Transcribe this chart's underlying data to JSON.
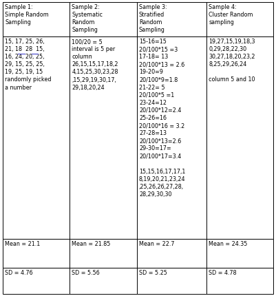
{
  "col_headers": [
    "Sample 1:\nSimple Random\nSampling",
    "Sample 2:\nSystematic\nRandom\nSampling",
    "Sample 3:\nStratified\nRandom\nSampling",
    "Sample 4:\nCluster Random\nsampling"
  ],
  "col1_body": "15, 17, 25, 26,\n21, 18  28  15,\n16, 24, 20, 25,\n29, 15, 25, 25,\n19, 25, 19, 15\nrandomly picked\na number",
  "col2_body": "100/20 = 5\ninterval is 5 per\ncolumn\n26,15,15,17,18,2\n4,15,25,30,23,28\n,15,29,19,30,17,\n29,18,20,24",
  "col3_body": "15-16=15\n20/100*15 =3\n17-18= 13\n20/100*13 = 2.6\n19-20=9\n20/100*9=1.8\n21-22= 5\n20/100*5 =1\n23-24=12\n20/100*12=2.4\n25-26=16\n20/100*16 = 3.2\n27-28=13\n20/100*13=2.6\n29-30=17=\n20/100*17=3.4\n\n15,15,16,17,17,1\n8,19,20,21,23,24\n,25,26,26,27,28,\n28,29,30,30",
  "col4_body": "19,27,15,19,18,3\n0,29,28,22,30\n30,27,18,20,23,2\n8,25,29,26,24\n\ncolumn 5 and 10",
  "col1_mean": "Mean = 21.1",
  "col2_mean": "Mean = 21.85",
  "col3_mean": "Mean = 22.7",
  "col4_mean": "Mean = 24.35",
  "col1_sd": "SD = 4.76",
  "col2_sd": "SD = 5.56",
  "col3_sd": "SD = 5.25",
  "col4_sd": "SD = 4.78",
  "bg_color": "#ffffff",
  "border_color": "#000000",
  "font_size": 5.8,
  "header_font_size": 5.8,
  "underline_col1_line2": true
}
